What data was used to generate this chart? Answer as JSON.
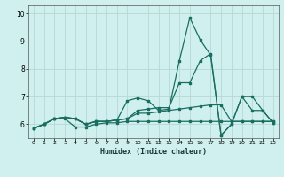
{
  "xlabel": "Humidex (Indice chaleur)",
  "bg_color": "#cff0ee",
  "grid_color": "#b8d8d4",
  "line_color": "#1a6e60",
  "xlim": [
    -0.5,
    23.5
  ],
  "ylim": [
    5.5,
    10.3
  ],
  "xticks": [
    0,
    1,
    2,
    3,
    4,
    5,
    6,
    7,
    8,
    9,
    10,
    11,
    12,
    13,
    14,
    15,
    16,
    17,
    18,
    19,
    20,
    21,
    22,
    23
  ],
  "yticks": [
    6,
    7,
    8,
    9,
    10
  ],
  "lines": [
    [
      5.85,
      6.0,
      6.2,
      6.2,
      5.9,
      5.9,
      6.0,
      6.05,
      6.05,
      6.1,
      6.1,
      6.1,
      6.1,
      6.1,
      6.1,
      6.1,
      6.1,
      6.1,
      6.1,
      6.1,
      6.1,
      6.1,
      6.1,
      6.1
    ],
    [
      5.85,
      6.0,
      6.2,
      6.25,
      6.2,
      6.0,
      6.1,
      6.1,
      6.15,
      6.2,
      6.4,
      6.4,
      6.45,
      6.5,
      6.55,
      6.6,
      6.65,
      6.7,
      6.7,
      6.1,
      6.1,
      6.1,
      6.1,
      6.1
    ],
    [
      5.85,
      6.0,
      6.2,
      6.25,
      6.2,
      6.0,
      6.1,
      6.1,
      6.15,
      6.2,
      6.5,
      6.55,
      6.6,
      6.6,
      7.5,
      7.5,
      8.3,
      8.55,
      5.6,
      6.0,
      7.0,
      7.0,
      6.5,
      6.05
    ],
    [
      5.85,
      6.0,
      6.2,
      6.25,
      6.2,
      6.0,
      6.1,
      6.1,
      6.15,
      6.85,
      6.95,
      6.85,
      6.5,
      6.55,
      8.3,
      9.85,
      9.05,
      8.5,
      5.6,
      6.0,
      7.0,
      6.5,
      6.5,
      6.05
    ]
  ]
}
